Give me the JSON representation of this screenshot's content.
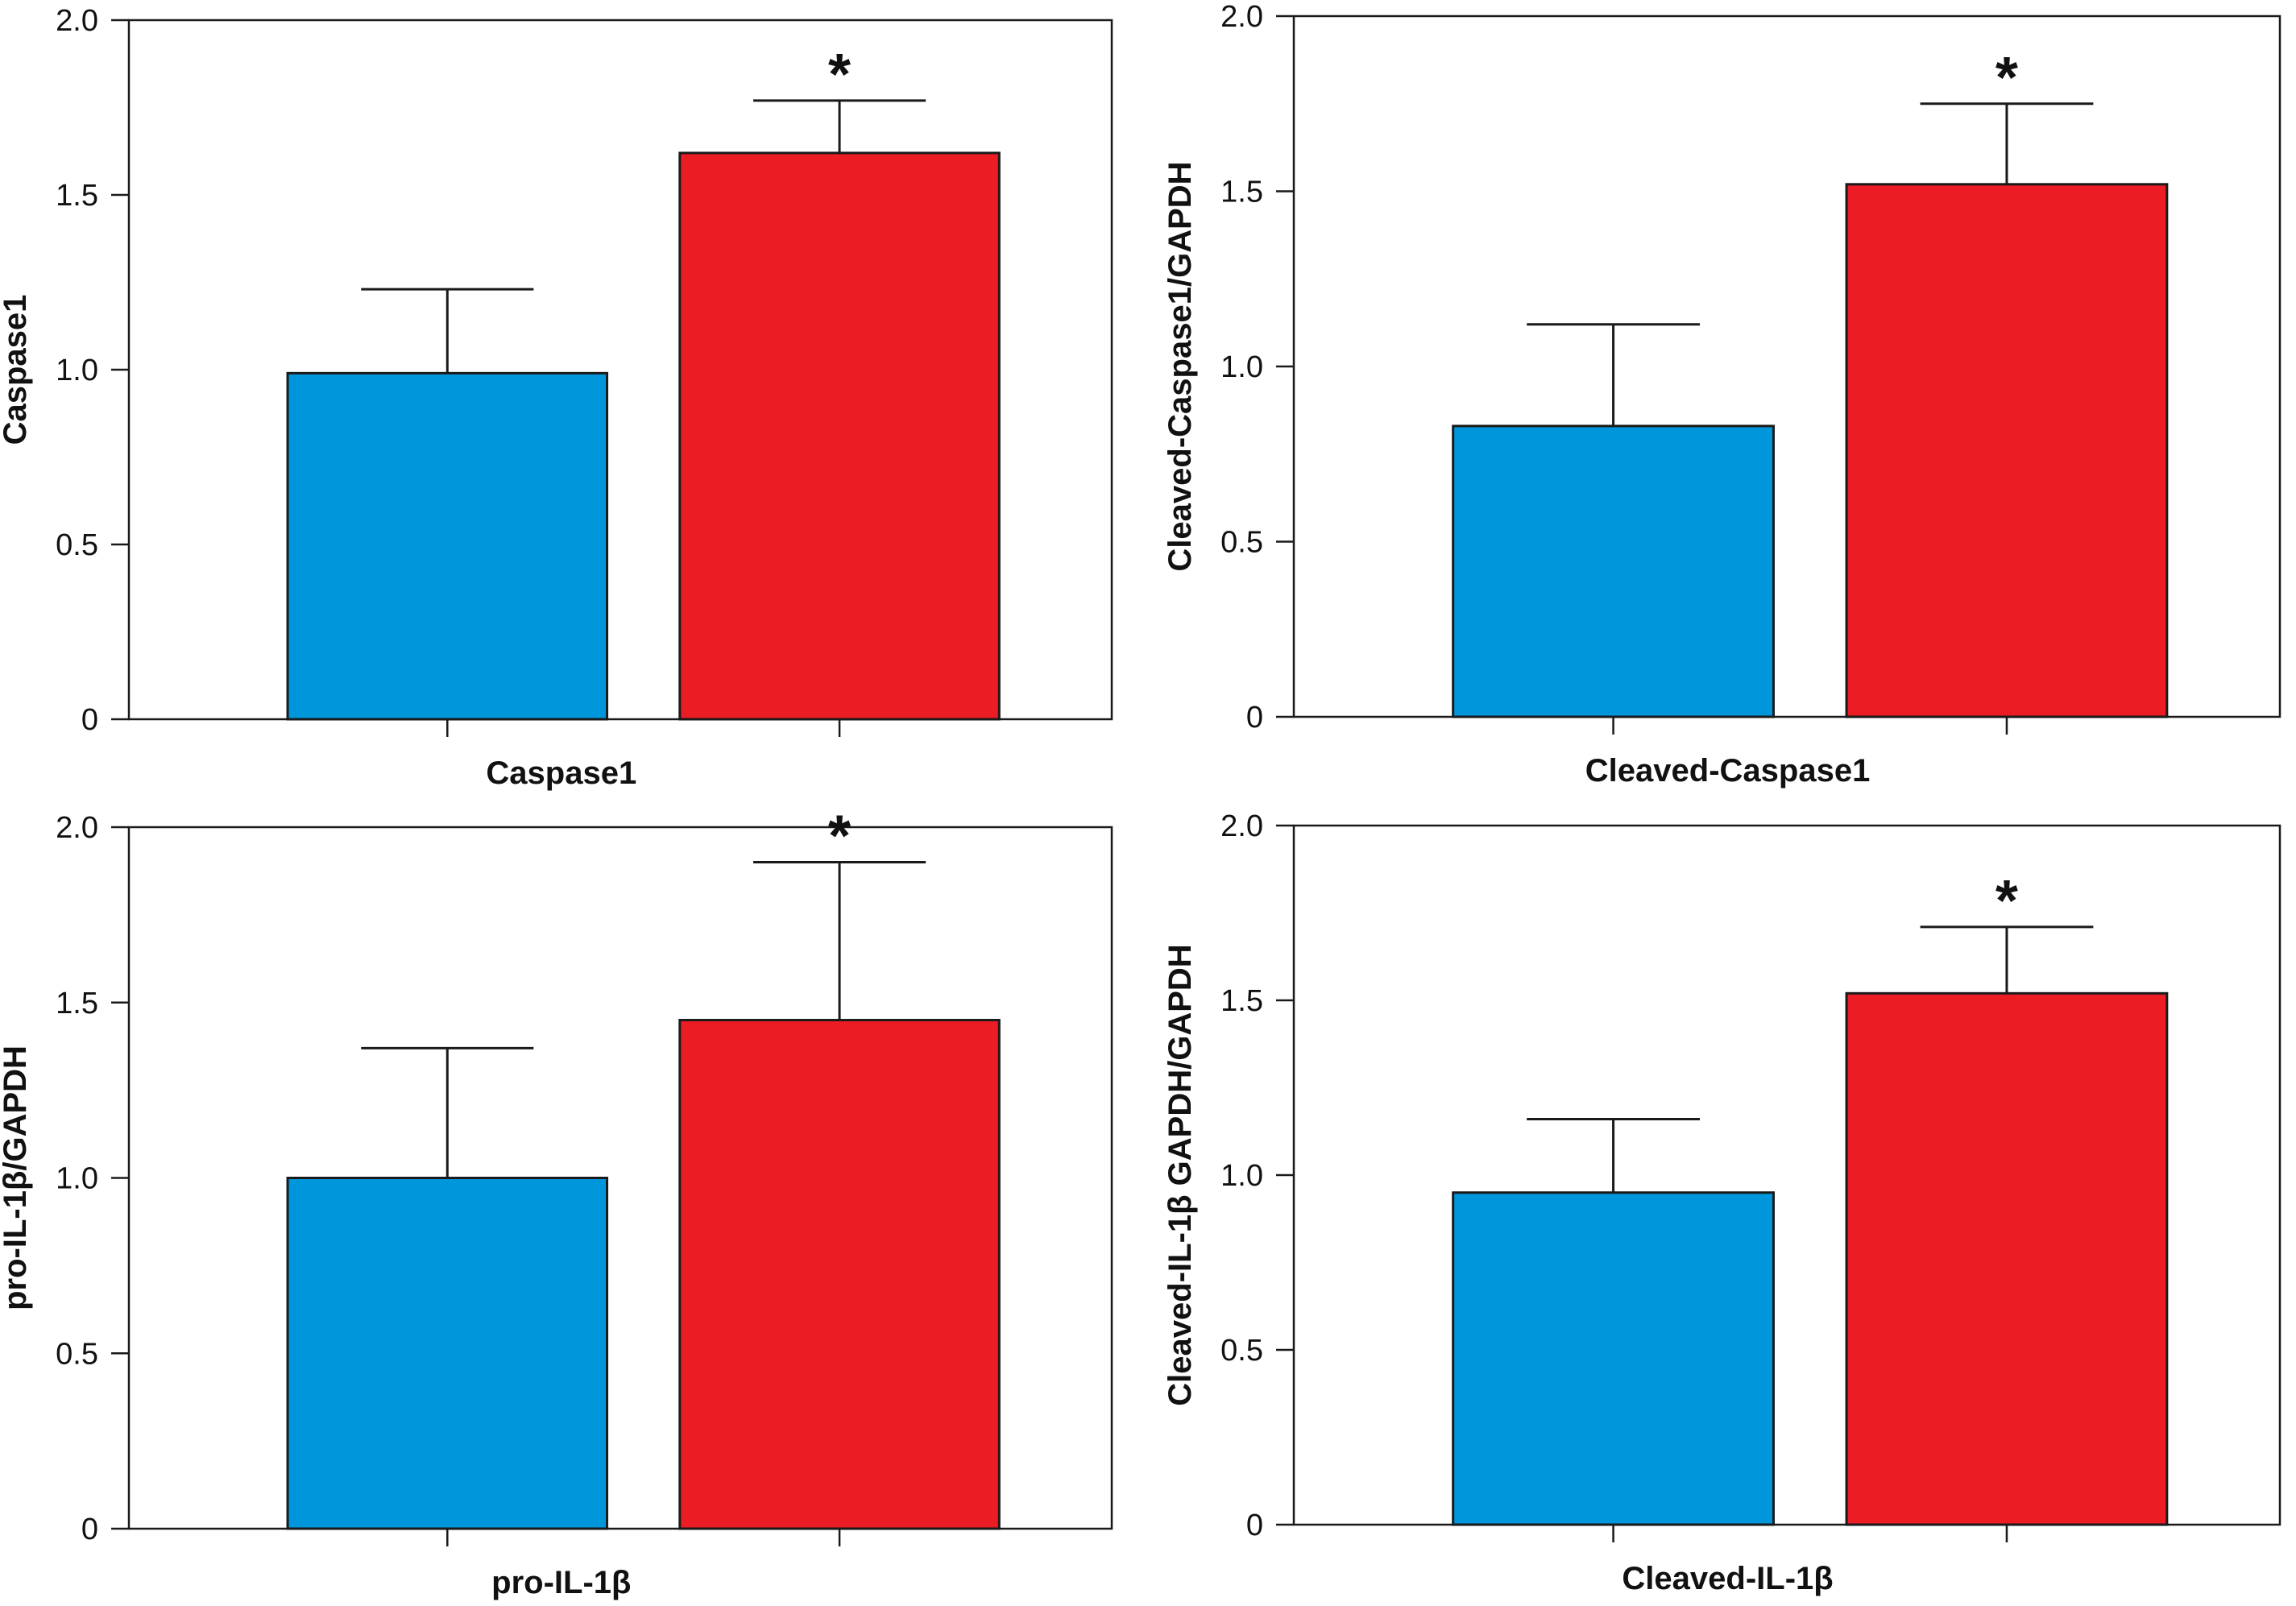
{
  "chart_data": [
    {
      "type": "bar",
      "categories": [
        "",
        ""
      ],
      "values": [
        0.99,
        1.62
      ],
      "errors": [
        0.24,
        0.15
      ],
      "significance": [
        "",
        "*"
      ],
      "bar_colors": [
        "#0096DC",
        "#EC1C24"
      ],
      "xlabel": "Caspase1",
      "ylabel": "Caspase1",
      "ylim": [
        0,
        2.0
      ],
      "yticks": [
        "0",
        "0.5",
        "1.0",
        "1.5",
        "2.0"
      ],
      "grid": false
    },
    {
      "type": "bar",
      "categories": [
        "",
        ""
      ],
      "values": [
        0.83,
        1.52
      ],
      "errors": [
        0.29,
        0.23
      ],
      "significance": [
        "",
        "*"
      ],
      "bar_colors": [
        "#0096DC",
        "#EC1C24"
      ],
      "xlabel": "Cleaved-Caspase1",
      "ylabel": "Cleaved-Caspase1/GAPDH",
      "ylim": [
        0,
        2.0
      ],
      "yticks": [
        "0",
        "0.5",
        "1.0",
        "1.5",
        "2.0"
      ],
      "grid": false
    },
    {
      "type": "bar",
      "categories": [
        "",
        ""
      ],
      "values": [
        1.0,
        1.45
      ],
      "errors": [
        0.37,
        0.45
      ],
      "significance": [
        "",
        "*"
      ],
      "bar_colors": [
        "#0096DC",
        "#EC1C24"
      ],
      "xlabel": "pro-IL-1β",
      "ylabel": "pro-IL-1β/GAPDH",
      "ylim": [
        0,
        2.0
      ],
      "yticks": [
        "0",
        "0.5",
        "1.0",
        "1.5",
        "2.0"
      ],
      "grid": false
    },
    {
      "type": "bar",
      "categories": [
        "",
        ""
      ],
      "values": [
        0.95,
        1.52
      ],
      "errors": [
        0.21,
        0.19
      ],
      "significance": [
        "",
        "*"
      ],
      "bar_colors": [
        "#0096DC",
        "#EC1C24"
      ],
      "xlabel": "Cleaved-IL-1β",
      "ylabel": "Cleaved-IL-1β GAPDH/GAPDH",
      "ylim": [
        0,
        2.0
      ],
      "yticks": [
        "0",
        "0.5",
        "1.0",
        "1.5",
        "2.0"
      ],
      "grid": false
    }
  ]
}
